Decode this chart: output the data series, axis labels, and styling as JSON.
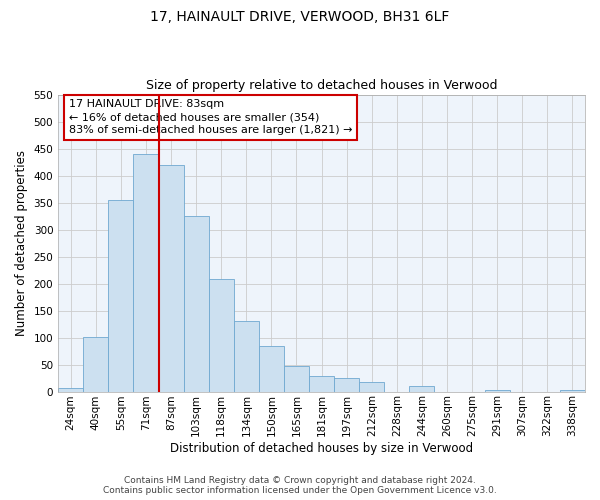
{
  "title": "17, HAINAULT DRIVE, VERWOOD, BH31 6LF",
  "subtitle": "Size of property relative to detached houses in Verwood",
  "xlabel": "Distribution of detached houses by size in Verwood",
  "ylabel": "Number of detached properties",
  "bar_labels": [
    "24sqm",
    "40sqm",
    "55sqm",
    "71sqm",
    "87sqm",
    "103sqm",
    "118sqm",
    "134sqm",
    "150sqm",
    "165sqm",
    "181sqm",
    "197sqm",
    "212sqm",
    "228sqm",
    "244sqm",
    "260sqm",
    "275sqm",
    "291sqm",
    "307sqm",
    "322sqm",
    "338sqm"
  ],
  "bar_values": [
    7,
    101,
    355,
    440,
    420,
    325,
    208,
    130,
    85,
    48,
    28,
    25,
    18,
    0,
    10,
    0,
    0,
    2,
    0,
    0,
    2
  ],
  "bar_color": "#cce0f0",
  "bar_edge_color": "#6fa8d0",
  "vline_color": "#cc0000",
  "ylim": [
    0,
    550
  ],
  "yticks": [
    0,
    50,
    100,
    150,
    200,
    250,
    300,
    350,
    400,
    450,
    500,
    550
  ],
  "annotation_title": "17 HAINAULT DRIVE: 83sqm",
  "annotation_line1": "← 16% of detached houses are smaller (354)",
  "annotation_line2": "83% of semi-detached houses are larger (1,821) →",
  "annotation_box_color": "#ffffff",
  "annotation_box_edge_color": "#cc0000",
  "footer_line1": "Contains HM Land Registry data © Crown copyright and database right 2024.",
  "footer_line2": "Contains public sector information licensed under the Open Government Licence v3.0.",
  "grid_color": "#cccccc",
  "plot_bg_color": "#eef4fb",
  "fig_bg_color": "#ffffff",
  "title_fontsize": 10,
  "subtitle_fontsize": 9,
  "axis_label_fontsize": 8.5,
  "tick_fontsize": 7.5,
  "annotation_fontsize": 8,
  "footer_fontsize": 6.5
}
